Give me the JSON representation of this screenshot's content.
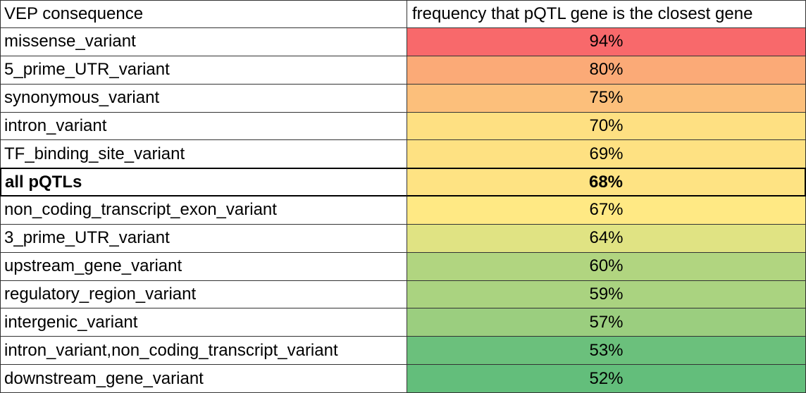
{
  "table": {
    "header": [
      "VEP consequence",
      "frequency that pQTL gene is the closest gene"
    ],
    "rows": [
      {
        "consequence": "missense_variant",
        "frequency": "94%",
        "fill": "#f8696b",
        "bold": false
      },
      {
        "consequence": "5_prime_UTR_variant",
        "frequency": "80%",
        "fill": "#fbaa77",
        "bold": false
      },
      {
        "consequence": "synonymous_variant",
        "frequency": "75%",
        "fill": "#fcbf7b",
        "bold": false
      },
      {
        "consequence": "intron_variant",
        "frequency": "70%",
        "fill": "#fee082",
        "bold": false
      },
      {
        "consequence": "TF_binding_site_variant",
        "frequency": "69%",
        "fill": "#fee182",
        "bold": false
      },
      {
        "consequence": "all pQTLs",
        "frequency": "68%",
        "fill": "#fee383",
        "bold": true
      },
      {
        "consequence": "non_coding_transcript_exon_variant",
        "frequency": "67%",
        "fill": "#ffe984",
        "bold": false
      },
      {
        "consequence": "3_prime_UTR_variant",
        "frequency": "64%",
        "fill": "#e0e383",
        "bold": false
      },
      {
        "consequence": "upstream_gene_variant",
        "frequency": "60%",
        "fill": "#b1d580",
        "bold": false
      },
      {
        "consequence": "regulatory_region_variant",
        "frequency": "59%",
        "fill": "#aad380",
        "bold": false
      },
      {
        "consequence": "intergenic_variant",
        "frequency": "57%",
        "fill": "#9bce7f",
        "bold": false
      },
      {
        "consequence": "intron_variant,non_coding_transcript_variant",
        "frequency": "53%",
        "fill": "#6bc07c",
        "bold": false
      },
      {
        "consequence": "downstream_gene_variant",
        "frequency": "52%",
        "fill": "#63be7b",
        "bold": false
      }
    ]
  }
}
